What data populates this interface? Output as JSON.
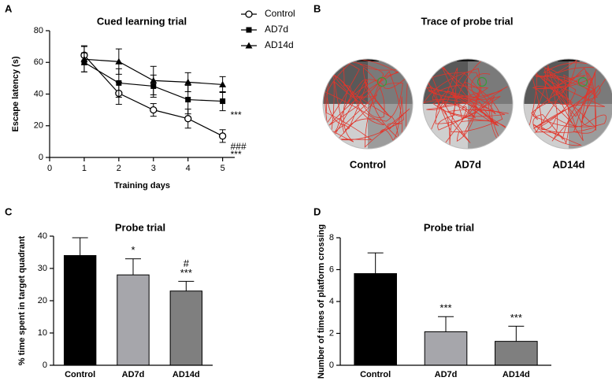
{
  "panel_labels": [
    "A",
    "B",
    "C",
    "D"
  ],
  "chart_data": [
    {
      "type": "line",
      "title": "Cued learning trial",
      "x_label": "Training days",
      "y_label": "Escape latency (s)",
      "x": [
        1,
        2,
        3,
        4,
        5
      ],
      "xlim": [
        0,
        5.35
      ],
      "xticks": [
        0,
        1,
        2,
        3,
        4,
        5
      ],
      "ylim": [
        0,
        80
      ],
      "yticks": [
        0,
        20,
        40,
        60,
        80
      ],
      "legend": "right",
      "series": [
        {
          "name": "Control",
          "color": "#000000",
          "marker": "open-circle",
          "values": [
            64.5,
            40.5,
            30,
            24.5,
            13.5
          ],
          "errors": [
            6,
            7,
            4,
            6,
            4
          ]
        },
        {
          "name": "AD7d",
          "color": "#000000",
          "marker": "square",
          "values": [
            60,
            47,
            45,
            36.5,
            35.5
          ],
          "errors": [
            6,
            9,
            7,
            9,
            6
          ]
        },
        {
          "name": "AD14d",
          "color": "#000000",
          "marker": "triangle",
          "values": [
            62,
            60.5,
            48.5,
            47.5,
            46
          ],
          "errors": [
            8,
            8,
            9,
            6,
            5
          ]
        }
      ],
      "significance": [
        {
          "series": 1,
          "point": 4,
          "labels": [
            "***"
          ]
        },
        {
          "series": 0,
          "point": 4,
          "labels": [
            "###",
            "***"
          ]
        }
      ]
    },
    {
      "type": "bar",
      "title": "Probe trial",
      "y_label": "% time spent in target quadrant",
      "categories": [
        "Control",
        "AD7d",
        "AD14d"
      ],
      "values": [
        34,
        28,
        23
      ],
      "errors": [
        5.5,
        5,
        3
      ],
      "colors": [
        "#000000",
        "#a6a6ab",
        "#7f7f7f"
      ],
      "ylim": [
        0,
        40
      ],
      "yticks": [
        0,
        10,
        20,
        30,
        40
      ],
      "significance": [
        null,
        [
          "*"
        ],
        [
          "#",
          "***"
        ]
      ]
    },
    {
      "type": "bar",
      "title": "Probe trial",
      "y_label": "Number of times of platform crossing",
      "categories": [
        "Control",
        "AD7d",
        "AD14d"
      ],
      "values": [
        5.75,
        2.1,
        1.5
      ],
      "errors": [
        1.3,
        0.95,
        0.95
      ],
      "colors": [
        "#000000",
        "#a6a6ab",
        "#7f7f7f"
      ],
      "ylim": [
        0,
        8
      ],
      "yticks": [
        0,
        2,
        4,
        6,
        8
      ],
      "significance": [
        null,
        [
          "***"
        ],
        [
          "***"
        ]
      ]
    }
  ],
  "probe_trace": {
    "title": "Trace of probe trial",
    "labels": [
      "Control",
      "AD7d",
      "AD14d"
    ]
  }
}
